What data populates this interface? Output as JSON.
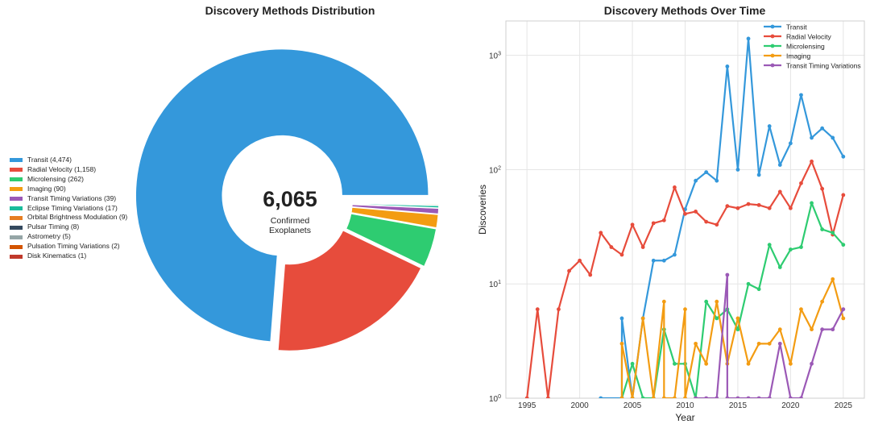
{
  "chart_data": [
    {
      "type": "pie",
      "title": "Discovery Methods Distribution",
      "center_value": "6,065",
      "center_label_line1": "Confirmed",
      "center_label_line2": "Exoplanets",
      "legend_placement": "left",
      "slices": [
        {
          "label": "Transit (4,474)",
          "value": 4474,
          "color": "#3498db"
        },
        {
          "label": "Radial Velocity (1,158)",
          "value": 1158,
          "color": "#e74c3c"
        },
        {
          "label": "Microlensing (262)",
          "value": 262,
          "color": "#2ecc71"
        },
        {
          "label": "Imaging (90)",
          "value": 90,
          "color": "#f39c12"
        },
        {
          "label": "Transit Timing Variations (39)",
          "value": 39,
          "color": "#9b59b6"
        },
        {
          "label": "Eclipse Timing Variations (17)",
          "value": 17,
          "color": "#1abc9c"
        },
        {
          "label": "Orbital Brightness Modulation (9)",
          "value": 9,
          "color": "#e67e22"
        },
        {
          "label": "Pulsar Timing (8)",
          "value": 8,
          "color": "#34495e"
        },
        {
          "label": "Astrometry (5)",
          "value": 5,
          "color": "#95a5a6"
        },
        {
          "label": "Pulsation Timing Variations (2)",
          "value": 2,
          "color": "#d35400"
        },
        {
          "label": "Disk Kinematics (1)",
          "value": 1,
          "color": "#c0392b"
        }
      ]
    },
    {
      "type": "line",
      "title": "Discovery Methods Over Time",
      "xlabel": "Year",
      "ylabel": "Discoveries",
      "yscale": "log",
      "xlim": [
        1993,
        2027
      ],
      "ylim": [
        1,
        2000
      ],
      "xticks": [
        1995,
        2000,
        2005,
        2010,
        2015,
        2020,
        2025
      ],
      "yticks": [
        {
          "value": 1,
          "label": "10",
          "sup": "0"
        },
        {
          "value": 10,
          "label": "10",
          "sup": "1"
        },
        {
          "value": 100,
          "label": "10",
          "sup": "2"
        },
        {
          "value": 1000,
          "label": "10",
          "sup": "3"
        }
      ],
      "grid": true,
      "legend_placement": "top-right",
      "series": [
        {
          "name": "Transit",
          "color": "#3498db",
          "x": [
            2002,
            2004,
            2004,
            2005,
            2006,
            2007,
            2008,
            2009,
            2010,
            2011,
            2012,
            2013,
            2014,
            2015,
            2016,
            2017,
            2018,
            2019,
            2020,
            2021,
            2022,
            2023,
            2024,
            2025
          ],
          "y": [
            1,
            1,
            5,
            1,
            5,
            16,
            16,
            18,
            45,
            80,
            95,
            80,
            800,
            100,
            1400,
            90,
            240,
            110,
            170,
            450,
            190,
            230,
            190,
            130
          ]
        },
        {
          "name": "Radial Velocity",
          "color": "#e74c3c",
          "x": [
            1995,
            1996,
            1997,
            1998,
            1999,
            2000,
            2001,
            2002,
            2003,
            2004,
            2005,
            2006,
            2007,
            2008,
            2009,
            2010,
            2011,
            2012,
            2013,
            2014,
            2015,
            2016,
            2017,
            2018,
            2019,
            2020,
            2021,
            2022,
            2023,
            2024,
            2025
          ],
          "y": [
            1,
            6,
            1,
            6,
            13,
            16,
            12,
            28,
            21,
            18,
            33,
            21,
            34,
            36,
            70,
            41,
            43,
            35,
            33,
            48,
            46,
            50,
            49,
            46,
            64,
            46,
            76,
            118,
            68,
            27,
            60
          ]
        },
        {
          "name": "Microlensing",
          "color": "#2ecc71",
          "x": [
            2004,
            2005,
            2006,
            2007,
            2008,
            2009,
            2010,
            2011,
            2012,
            2013,
            2014,
            2015,
            2016,
            2017,
            2018,
            2019,
            2020,
            2021,
            2022,
            2023,
            2024,
            2025
          ],
          "y": [
            1,
            2,
            1,
            1,
            4,
            2,
            2,
            1,
            7,
            5,
            6,
            4,
            10,
            9,
            22,
            14,
            20,
            21,
            51,
            30,
            28,
            22
          ]
        },
        {
          "name": "Imaging",
          "color": "#f39c12",
          "x": [
            2004,
            2004,
            2005,
            2006,
            2007,
            2008,
            2008,
            2009,
            2010,
            2010,
            2011,
            2012,
            2013,
            2014,
            2015,
            2016,
            2017,
            2018,
            2019,
            2020,
            2021,
            2022,
            2023,
            2024,
            2025
          ],
          "y": [
            1,
            3,
            1,
            5,
            1,
            7,
            1,
            1,
            6,
            1,
            3,
            2,
            7,
            2,
            5,
            2,
            3,
            3,
            4,
            2,
            6,
            4,
            7,
            11,
            5
          ]
        },
        {
          "name": "Transit Timing Variations",
          "color": "#9b59b6",
          "x": [
            2011,
            2012,
            2013,
            2014,
            2014,
            2015,
            2016,
            2017,
            2018,
            2019,
            2020,
            2021,
            2022,
            2023,
            2024,
            2025
          ],
          "y": [
            1,
            1,
            1,
            12,
            1,
            1,
            1,
            1,
            1,
            3,
            1,
            1,
            2,
            4,
            4,
            6
          ]
        }
      ]
    }
  ]
}
